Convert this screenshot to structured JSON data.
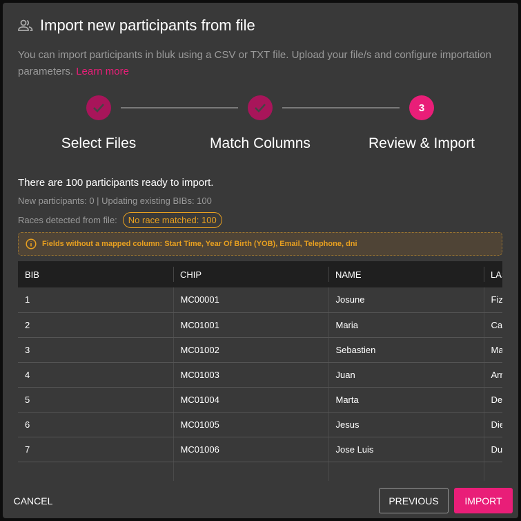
{
  "header": {
    "title": "Import new participants from file",
    "icon": "people-icon",
    "description": "You can import participants in bluk using a CSV or TXT file. Upload your file/s and configure importation parameters.",
    "learn_more": "Learn more"
  },
  "steps": [
    {
      "label": "Select Files",
      "state": "done"
    },
    {
      "label": "Match Columns",
      "state": "done"
    },
    {
      "label": "Review & Import",
      "number": "3",
      "state": "active"
    }
  ],
  "summary": {
    "ready": "There are 100 participants ready to import.",
    "counts": "New participants: 0 | Updating existing BIBs: 100",
    "races_label": "Races detected from file:",
    "races_chip": "No race matched: 100"
  },
  "warning": "Fields without a mapped column: Start Time, Year Of Birth (YOB), Email, Telephone, dni",
  "table": {
    "columns": [
      "BIB",
      "CHIP",
      "NAME",
      "LASTNAME"
    ],
    "rows": [
      [
        "1",
        "MC00001",
        "Josune",
        "Fiz Martin"
      ],
      [
        "2",
        "MC01001",
        "Maria",
        "Casasempere"
      ],
      [
        "3",
        "MC01002",
        "Sebastien",
        "Mancera Hidalgo"
      ],
      [
        "4",
        "MC01003",
        "Juan",
        "Arriola Arakistain"
      ],
      [
        "5",
        "MC01004",
        "Marta",
        "Del Cerro Olea"
      ],
      [
        "6",
        "MC01005",
        "Jesus",
        "Diez Gonzalez"
      ],
      [
        "7",
        "MC01006",
        "Jose Luis",
        "Duran Galletero"
      ]
    ]
  },
  "footer": {
    "cancel": "CANCEL",
    "previous": "PREVIOUS",
    "import": "IMPORT"
  },
  "colors": {
    "accent": "#e91e78",
    "done": "#a8155a",
    "warning": "#e8a020"
  }
}
